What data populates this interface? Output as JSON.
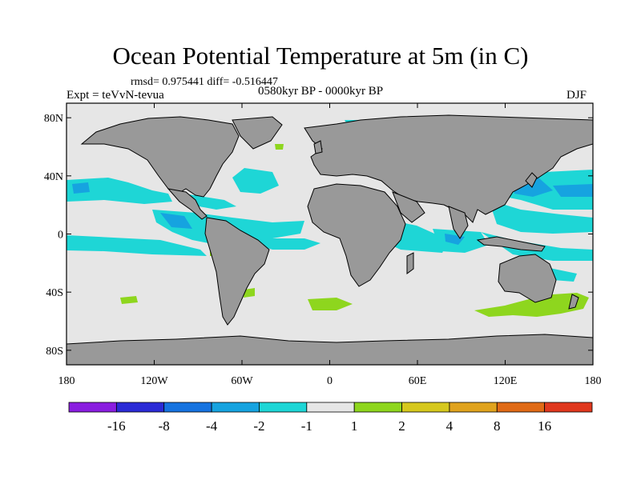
{
  "title": "Ocean Potential Temperature at 5m (in C)",
  "stats": "rmsd= 0.975441 diff= -0.516447",
  "left_label": "Expt = teVvN-tevua",
  "center_label": "0580kyr BP - 0000kyr BP",
  "right_label": "DJF",
  "lat_ticks": [
    {
      "value": 80,
      "label": "80N"
    },
    {
      "value": 40,
      "label": "40N"
    },
    {
      "value": 0,
      "label": "0"
    },
    {
      "value": -40,
      "label": "40S"
    },
    {
      "value": -80,
      "label": "80S"
    }
  ],
  "lon_ticks": [
    {
      "value": -180,
      "label": "180"
    },
    {
      "value": -120,
      "label": "120W"
    },
    {
      "value": -60,
      "label": "60W"
    },
    {
      "value": 0,
      "label": "0"
    },
    {
      "value": 60,
      "label": "60E"
    },
    {
      "value": 120,
      "label": "120E"
    },
    {
      "value": 180,
      "label": "180"
    }
  ],
  "colorbar": {
    "colors": [
      "#8a1ee0",
      "#2b2bd6",
      "#1673e0",
      "#16a3e0",
      "#1ed6d6",
      "#e6e6e6",
      "#8ed61e",
      "#d6c81e",
      "#e0a31e",
      "#e06a16",
      "#e0381e"
    ],
    "labels": [
      "-16",
      "-8",
      "-4",
      "-2",
      "-1",
      "1",
      "2",
      "4",
      "8",
      "16"
    ]
  },
  "colors": {
    "land": "#999999",
    "background_field": "#e6e6e6",
    "cyan": "#1ed6d6",
    "blue": "#16a3e0",
    "green": "#8ed61e"
  }
}
